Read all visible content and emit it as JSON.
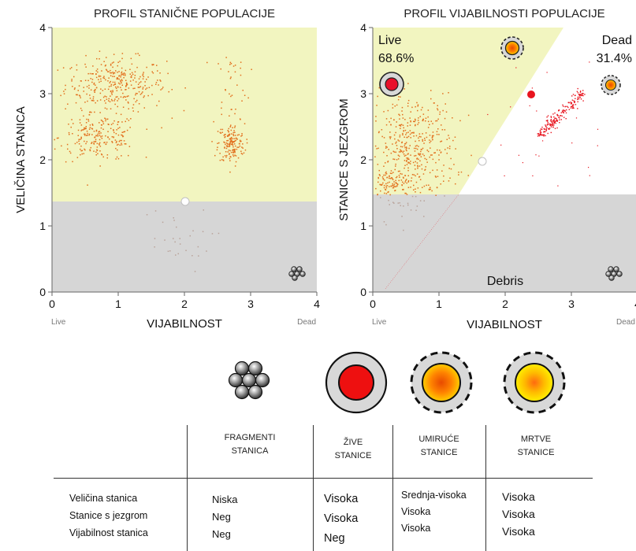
{
  "chart_data": [
    {
      "type": "scatter",
      "title": "PROFIL STANIČNE POPULACIJE",
      "xlabel": "VIJABILNOST",
      "ylabel": "VELIČINA STANICA",
      "xlim": [
        0,
        4
      ],
      "ylim": [
        0,
        4
      ],
      "xticks": [
        "0",
        "1",
        "2",
        "3",
        "4"
      ],
      "yticks": [
        "0",
        "1",
        "2",
        "3",
        "4"
      ],
      "x_start_label": "Live",
      "x_end_label": "Dead",
      "gate_threshold_y": 1.37,
      "clusters": [
        {
          "cx": 0.95,
          "cy": 3.15,
          "sx": 0.38,
          "sy": 0.2,
          "n": 330
        },
        {
          "cx": 0.7,
          "cy": 2.35,
          "sx": 0.3,
          "sy": 0.18,
          "n": 220
        },
        {
          "cx": 2.7,
          "cy": 2.25,
          "sx": 0.1,
          "sy": 0.15,
          "n": 160
        },
        {
          "cx": 2.7,
          "cy": 3.1,
          "sx": 0.14,
          "sy": 0.35,
          "n": 40
        },
        {
          "cx": 1.8,
          "cy": 0.8,
          "sx": 0.3,
          "sy": 0.25,
          "n": 30
        }
      ]
    },
    {
      "type": "scatter",
      "title": "PROFIL VIJABILNOSTI POPULACIJE",
      "xlabel": "VIJABILNOST",
      "ylabel": "STANICE S JEZGROM",
      "xlim": [
        0,
        4
      ],
      "ylim": [
        0,
        4
      ],
      "xticks": [
        "0",
        "1",
        "2",
        "3",
        "4"
      ],
      "yticks": [
        "0",
        "1",
        "2",
        "3",
        "4"
      ],
      "x_start_label": "Live",
      "x_end_label": "Dead",
      "gate_threshold_y": 1.47,
      "live_label": "Live",
      "live_pct": "68.6%",
      "dead_label": "Dead",
      "dead_pct": "31.4%",
      "debris_label": "Debris",
      "clusters": [
        {
          "cx": 0.6,
          "cy": 2.2,
          "sx": 0.32,
          "sy": 0.4,
          "n": 420
        },
        {
          "cx": 0.3,
          "cy": 1.65,
          "sx": 0.2,
          "sy": 0.12,
          "n": 120
        }
      ],
      "dead_line": {
        "x0": 2.45,
        "y0": 2.45,
        "x1": 3.1,
        "y1": 3.1,
        "n": 200
      }
    }
  ],
  "legend_icons": [
    {
      "name": "fragmenti",
      "label": "FRAGMENTI STANICA"
    },
    {
      "name": "zive",
      "label": "ŽIVE STANICE"
    },
    {
      "name": "umiruce",
      "label": "UMIRUĆE STANICE"
    },
    {
      "name": "mrtve",
      "label": "MRTVE STANICE"
    }
  ],
  "table": {
    "headers": [
      [
        "FRAGMENTI",
        "STANICA"
      ],
      [
        "ŽIVE",
        "STANICE"
      ],
      [
        "UMIRUĆE",
        "STANICE"
      ],
      [
        "MRTVE",
        "STANICE"
      ]
    ],
    "row_labels": [
      "Veličina stanica",
      "Stanice s jezgrom",
      "Vijabilnost stanica"
    ],
    "columns": [
      [
        "Niska",
        "Neg",
        "Neg"
      ],
      [
        "Visoka",
        "Visoka",
        "Neg"
      ],
      [
        "Srednja-visoka",
        "Visoka",
        "Visoka"
      ],
      [
        "Visoka",
        "Visoka",
        "Visoka"
      ]
    ]
  },
  "colors": {
    "gate_yellow": "#f2f5c0",
    "gate_gray": "#d6d6d6",
    "dot_orange": "#e2701e",
    "dot_red": "#e8141e",
    "live_cell": "#e8102a",
    "dying_outer": "#ff9a00",
    "dying_inner": "#e84a00",
    "dead_inner": "#ffe400",
    "dead_center": "#ff7a10"
  }
}
